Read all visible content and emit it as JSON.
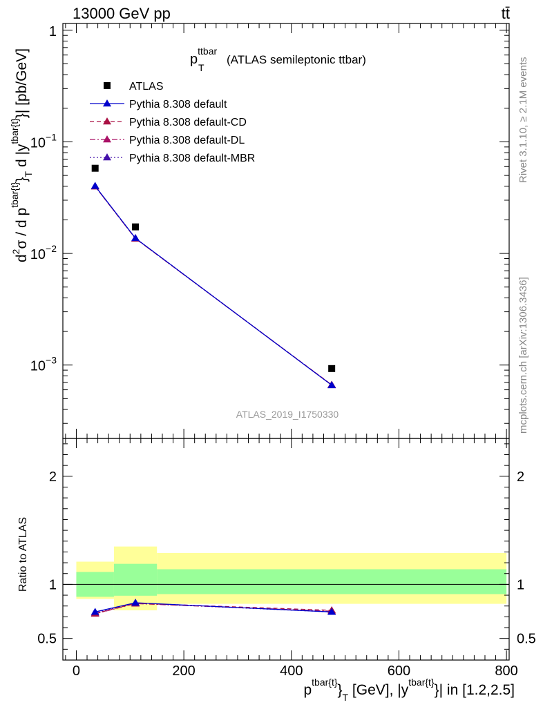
{
  "header": {
    "energy_label": "13000 GeV pp",
    "process_label": "tt̄"
  },
  "side": {
    "rivet_label": "Rivet 3.1.10, ≥ 2.1M events",
    "mcplots_label": "mcplots.cern.ch [arXiv:1306.3436]"
  },
  "chart_data": [
    {
      "type": "scatter",
      "panel": "main",
      "title_main": "p",
      "title_sup": "ttbar",
      "title_sub": "T",
      "title_rest": "(ATLAS semileptonic ttbar)",
      "analysis_label": "ATLAS_2019_I1750330",
      "ylabel": {
        "p1": "d",
        "p1_sup": "2",
        "p2": "σ / d p",
        "p2_sup": "tbar{t}",
        "p3_sub": "T",
        "p4": " d |y",
        "p4_sup": "tbar{t}",
        "p5": "}| [pb/GeV]",
        "brace": "}"
      },
      "yscale": "log",
      "ylim": [
        0.00022,
        1.15
      ],
      "xlim": [
        -25,
        805
      ],
      "y_tick_labels": [
        {
          "value": 1,
          "base": "1",
          "exp": ""
        },
        {
          "value": 0.1,
          "base": "10",
          "exp": "−1"
        },
        {
          "value": 0.01,
          "base": "10",
          "exp": "−2"
        },
        {
          "value": 0.001,
          "base": "10",
          "exp": "−3"
        }
      ],
      "legend": {
        "placement": "top-left",
        "entries": [
          {
            "label": "ATLAS",
            "marker": "square",
            "color": "#000000",
            "line": "none"
          },
          {
            "label": "Pythia 8.308 default",
            "marker": "triangle",
            "color": "#0000cc",
            "line": "solid"
          },
          {
            "label": "Pythia 8.308 default-CD",
            "marker": "triangle",
            "color": "#aa1144",
            "line": "dashed"
          },
          {
            "label": "Pythia 8.308 default-DL",
            "marker": "triangle",
            "color": "#aa1166",
            "line": "dashdot"
          },
          {
            "label": "Pythia 8.308 default-MBR",
            "marker": "triangle",
            "color": "#4411aa",
            "line": "dotted"
          }
        ]
      },
      "series": [
        {
          "name": "ATLAS",
          "x": [
            35,
            110,
            475
          ],
          "y": [
            0.058,
            0.0173,
            0.00093
          ]
        },
        {
          "name": "Pythia 8.308 default",
          "x": [
            35,
            110,
            475
          ],
          "y": [
            0.0402,
            0.0137,
            0.00066
          ]
        },
        {
          "name": "Pythia 8.308 default-CD",
          "x": [
            35,
            110,
            475
          ],
          "y": [
            0.0398,
            0.0136,
            0.000665
          ]
        },
        {
          "name": "Pythia 8.308 default-DL",
          "x": [
            35,
            110,
            475
          ],
          "y": [
            0.0399,
            0.0136,
            0.000662
          ]
        },
        {
          "name": "Pythia 8.308 default-MBR",
          "x": [
            35,
            110,
            475
          ],
          "y": [
            0.0401,
            0.0137,
            0.00066
          ]
        }
      ]
    },
    {
      "type": "scatter",
      "panel": "ratio",
      "ylabel": "Ratio to ATLAS",
      "ylim": [
        0.3,
        2.35
      ],
      "xlim": [
        -25,
        805
      ],
      "y_ticks": [
        0.5,
        1,
        2
      ],
      "y_tick_labels": [
        "0.5",
        "1",
        "2"
      ],
      "x_ticks": [
        0,
        200,
        400,
        600,
        800
      ],
      "x_tick_labels": [
        "0",
        "200",
        "400",
        "600",
        "800"
      ],
      "xlabel": {
        "p1": "p",
        "p1_sup": "tbar{t}",
        "p2": "}",
        "p2_sub": "T",
        "p3": " [GeV], |y",
        "p3_sup": "tbar{t}",
        "p4": "}| in [1.2,2.5]"
      },
      "bands": [
        {
          "xmin": 0,
          "xmax": 70,
          "inner": [
            0.885,
            1.115
          ],
          "outer": [
            0.865,
            1.21
          ]
        },
        {
          "xmin": 70,
          "xmax": 150,
          "inner": [
            0.895,
            1.19
          ],
          "outer": [
            0.76,
            1.35
          ]
        },
        {
          "xmin": 150,
          "xmax": 800,
          "inner": [
            0.91,
            1.14
          ],
          "outer": [
            0.82,
            1.29
          ]
        }
      ],
      "band_colors": {
        "inner": "#99ff99",
        "outer": "#ffff99"
      },
      "reference_line": 1,
      "series": [
        {
          "name": "Pythia 8.308 default",
          "x": [
            35,
            110,
            475
          ],
          "y": [
            0.745,
            0.83,
            0.745
          ]
        },
        {
          "name": "Pythia 8.308 default-CD",
          "x": [
            35,
            110,
            475
          ],
          "y": [
            0.73,
            0.825,
            0.76
          ]
        },
        {
          "name": "Pythia 8.308 default-DL",
          "x": [
            35,
            110,
            475
          ],
          "y": [
            0.728,
            0.822,
            0.752
          ]
        },
        {
          "name": "Pythia 8.308 default-MBR",
          "x": [
            35,
            110,
            475
          ],
          "y": [
            0.735,
            0.826,
            0.745
          ]
        }
      ]
    }
  ]
}
